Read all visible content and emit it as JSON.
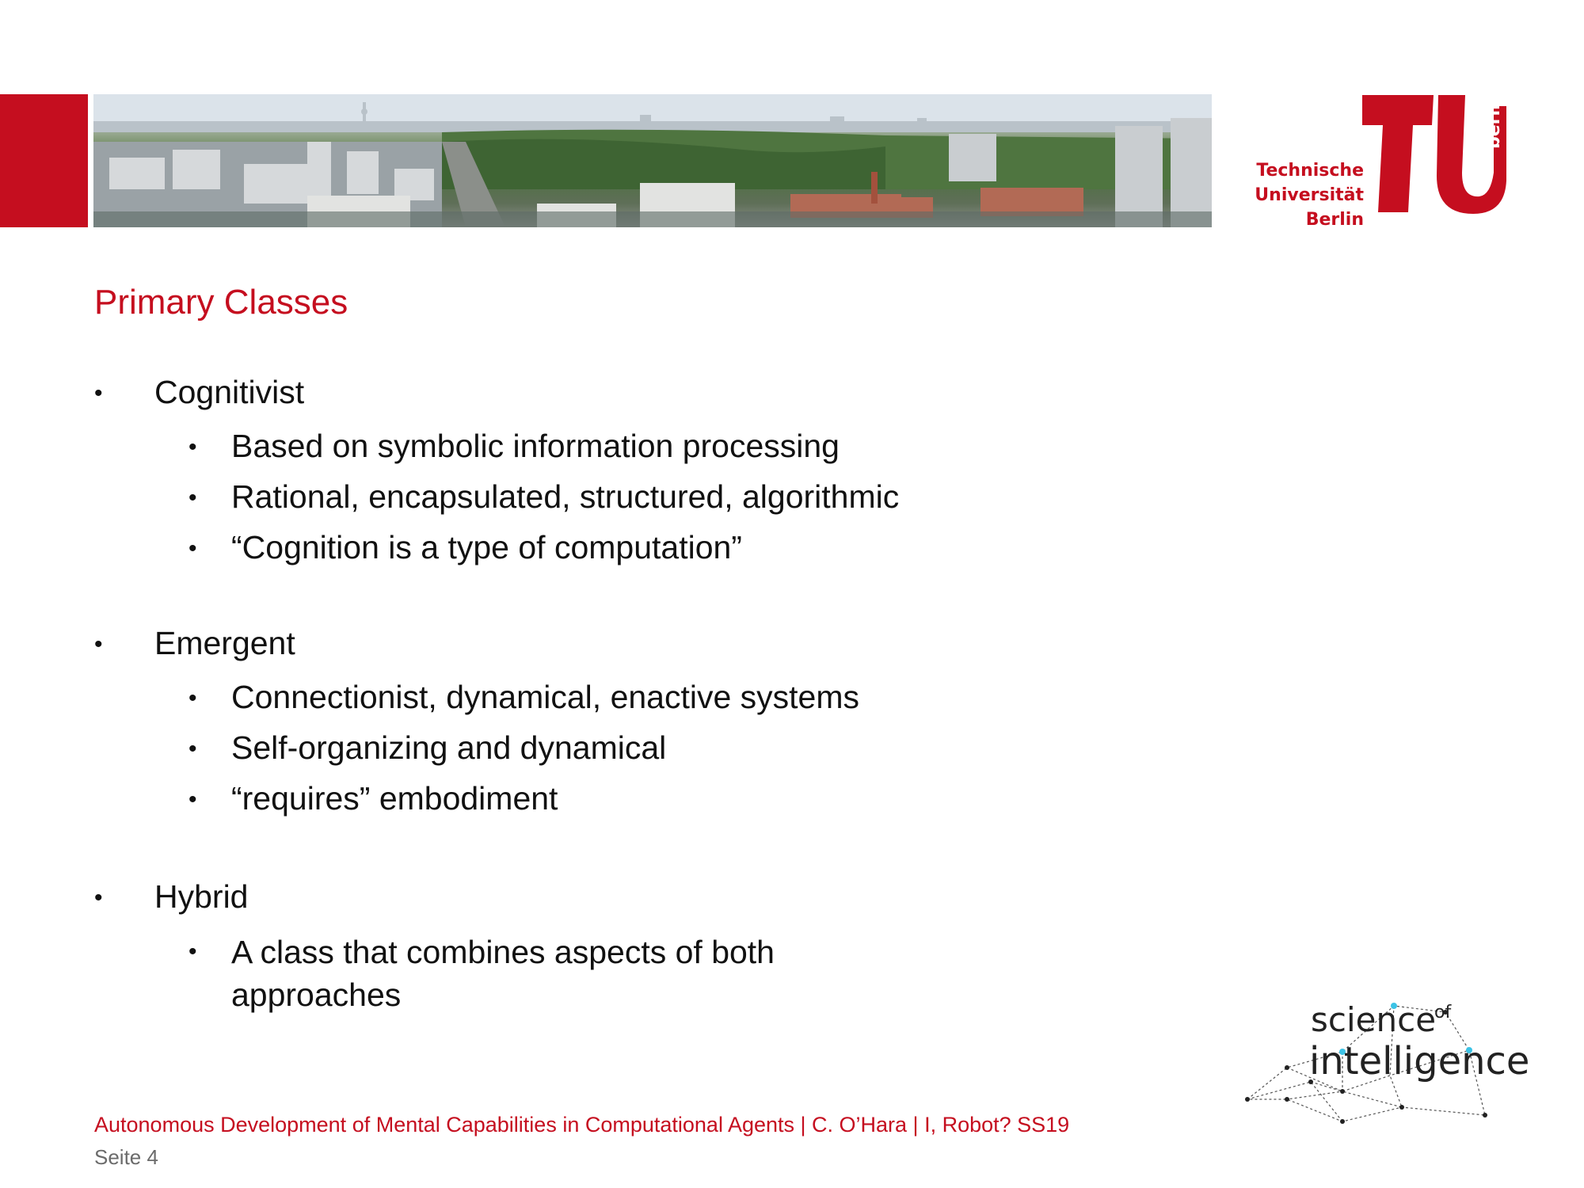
{
  "header": {
    "logo": {
      "words": [
        "Technische",
        "Universität",
        "Berlin"
      ],
      "vertical": "berlin",
      "brand_color": "#c50e1f"
    },
    "banner_image": "berlin-panorama"
  },
  "slide": {
    "title": "Primary Classes",
    "sections": [
      {
        "label": "Cognitivist",
        "items": [
          "Based on symbolic information processing",
          "Rational, encapsulated, structured, algorithmic",
          "“Cognition is a type of computation”"
        ]
      },
      {
        "label": "Emergent",
        "items": [
          "Connectionist, dynamical, enactive systems",
          "Self-organizing and dynamical",
          "“requires” embodiment"
        ]
      },
      {
        "label": "Hybrid",
        "items": [
          "A class that combines aspects of both approaches"
        ],
        "wrapped_item": [
          "A class that combines aspects of both",
          "approaches"
        ]
      }
    ],
    "bullet_glyph": "•"
  },
  "footer": {
    "course": "Autonomous Development of Mental Capabilities in Computational Agents | C. O’Hara | I, Robot? SS19",
    "page": "Seite 4"
  },
  "partner_logo": {
    "science": "science",
    "of": "of",
    "intelligence": "intelligence",
    "accent": "#3cc3e6"
  }
}
